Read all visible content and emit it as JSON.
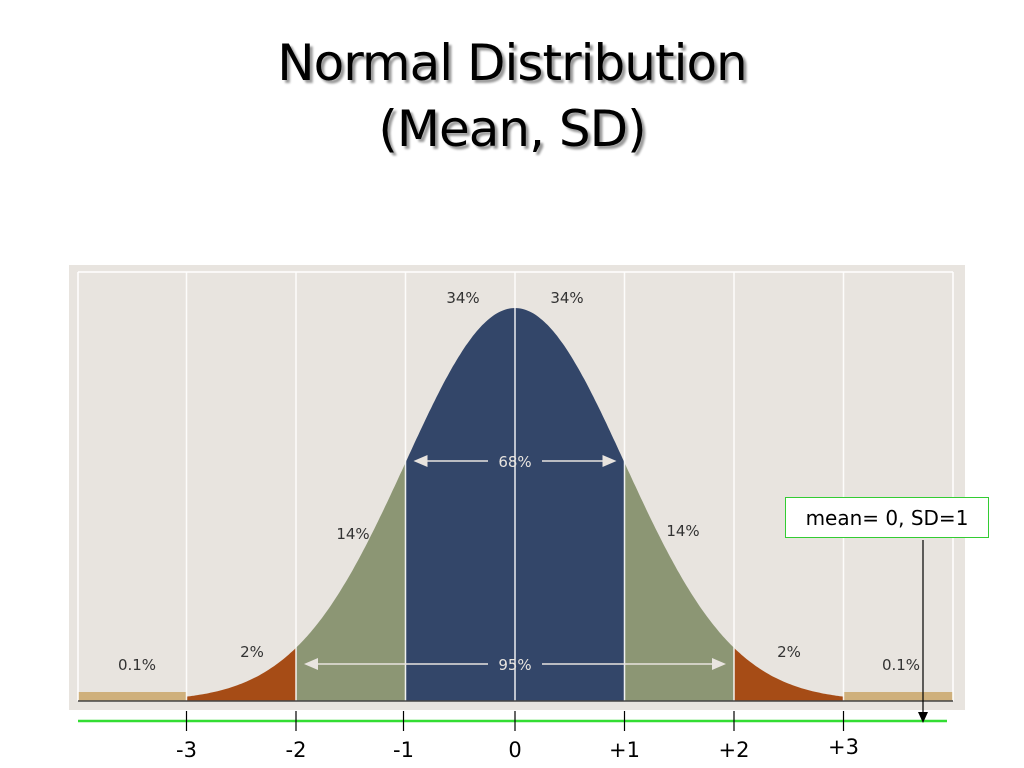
{
  "slide": {
    "title_line1": "Normal Distribution",
    "title_line2": "(Mean, SD)"
  },
  "annotation": {
    "text": "mean= 0, SD=1"
  },
  "colors": {
    "panel": "#e8e4df",
    "grid": "#ffffff",
    "center_band": "#334669",
    "one_sd_band": "#8c9674",
    "two_sd_band": "#a64c16",
    "tail_band": "#cfb07c",
    "axis_line": "#33dd33",
    "bracket_label": "#e8e4df",
    "region_label": "#333333"
  },
  "chart_data": {
    "type": "area",
    "title": "",
    "xlabel": "",
    "ylabel": "",
    "distribution": "normal",
    "mean": 0,
    "sd": 1,
    "xlim": [
      -4,
      4
    ],
    "x_ticks": [
      -3,
      -2,
      -1,
      0,
      1,
      2,
      3
    ],
    "x_tick_labels": [
      "-3",
      "-2",
      "-1",
      "0",
      "+1",
      "+2",
      "+3"
    ],
    "grid": true,
    "bands": [
      {
        "from": -4,
        "to": -3,
        "label": "0.1%",
        "color_key": "tail_band"
      },
      {
        "from": -3,
        "to": -2,
        "label": "2%",
        "color_key": "two_sd_band"
      },
      {
        "from": -2,
        "to": -1,
        "label": "14%",
        "color_key": "one_sd_band"
      },
      {
        "from": -1,
        "to": 0,
        "label": "34%",
        "color_key": "center_band"
      },
      {
        "from": 0,
        "to": 1,
        "label": "34%",
        "color_key": "center_band"
      },
      {
        "from": 1,
        "to": 2,
        "label": "14%",
        "color_key": "one_sd_band"
      },
      {
        "from": 2,
        "to": 3,
        "label": "2%",
        "color_key": "two_sd_band"
      },
      {
        "from": 3,
        "to": 4,
        "label": "0.1%",
        "color_key": "tail_band"
      }
    ],
    "brackets": [
      {
        "from": -1,
        "to": 1,
        "label": "68%"
      },
      {
        "from": -2,
        "to": 2,
        "label": "95%"
      }
    ]
  }
}
